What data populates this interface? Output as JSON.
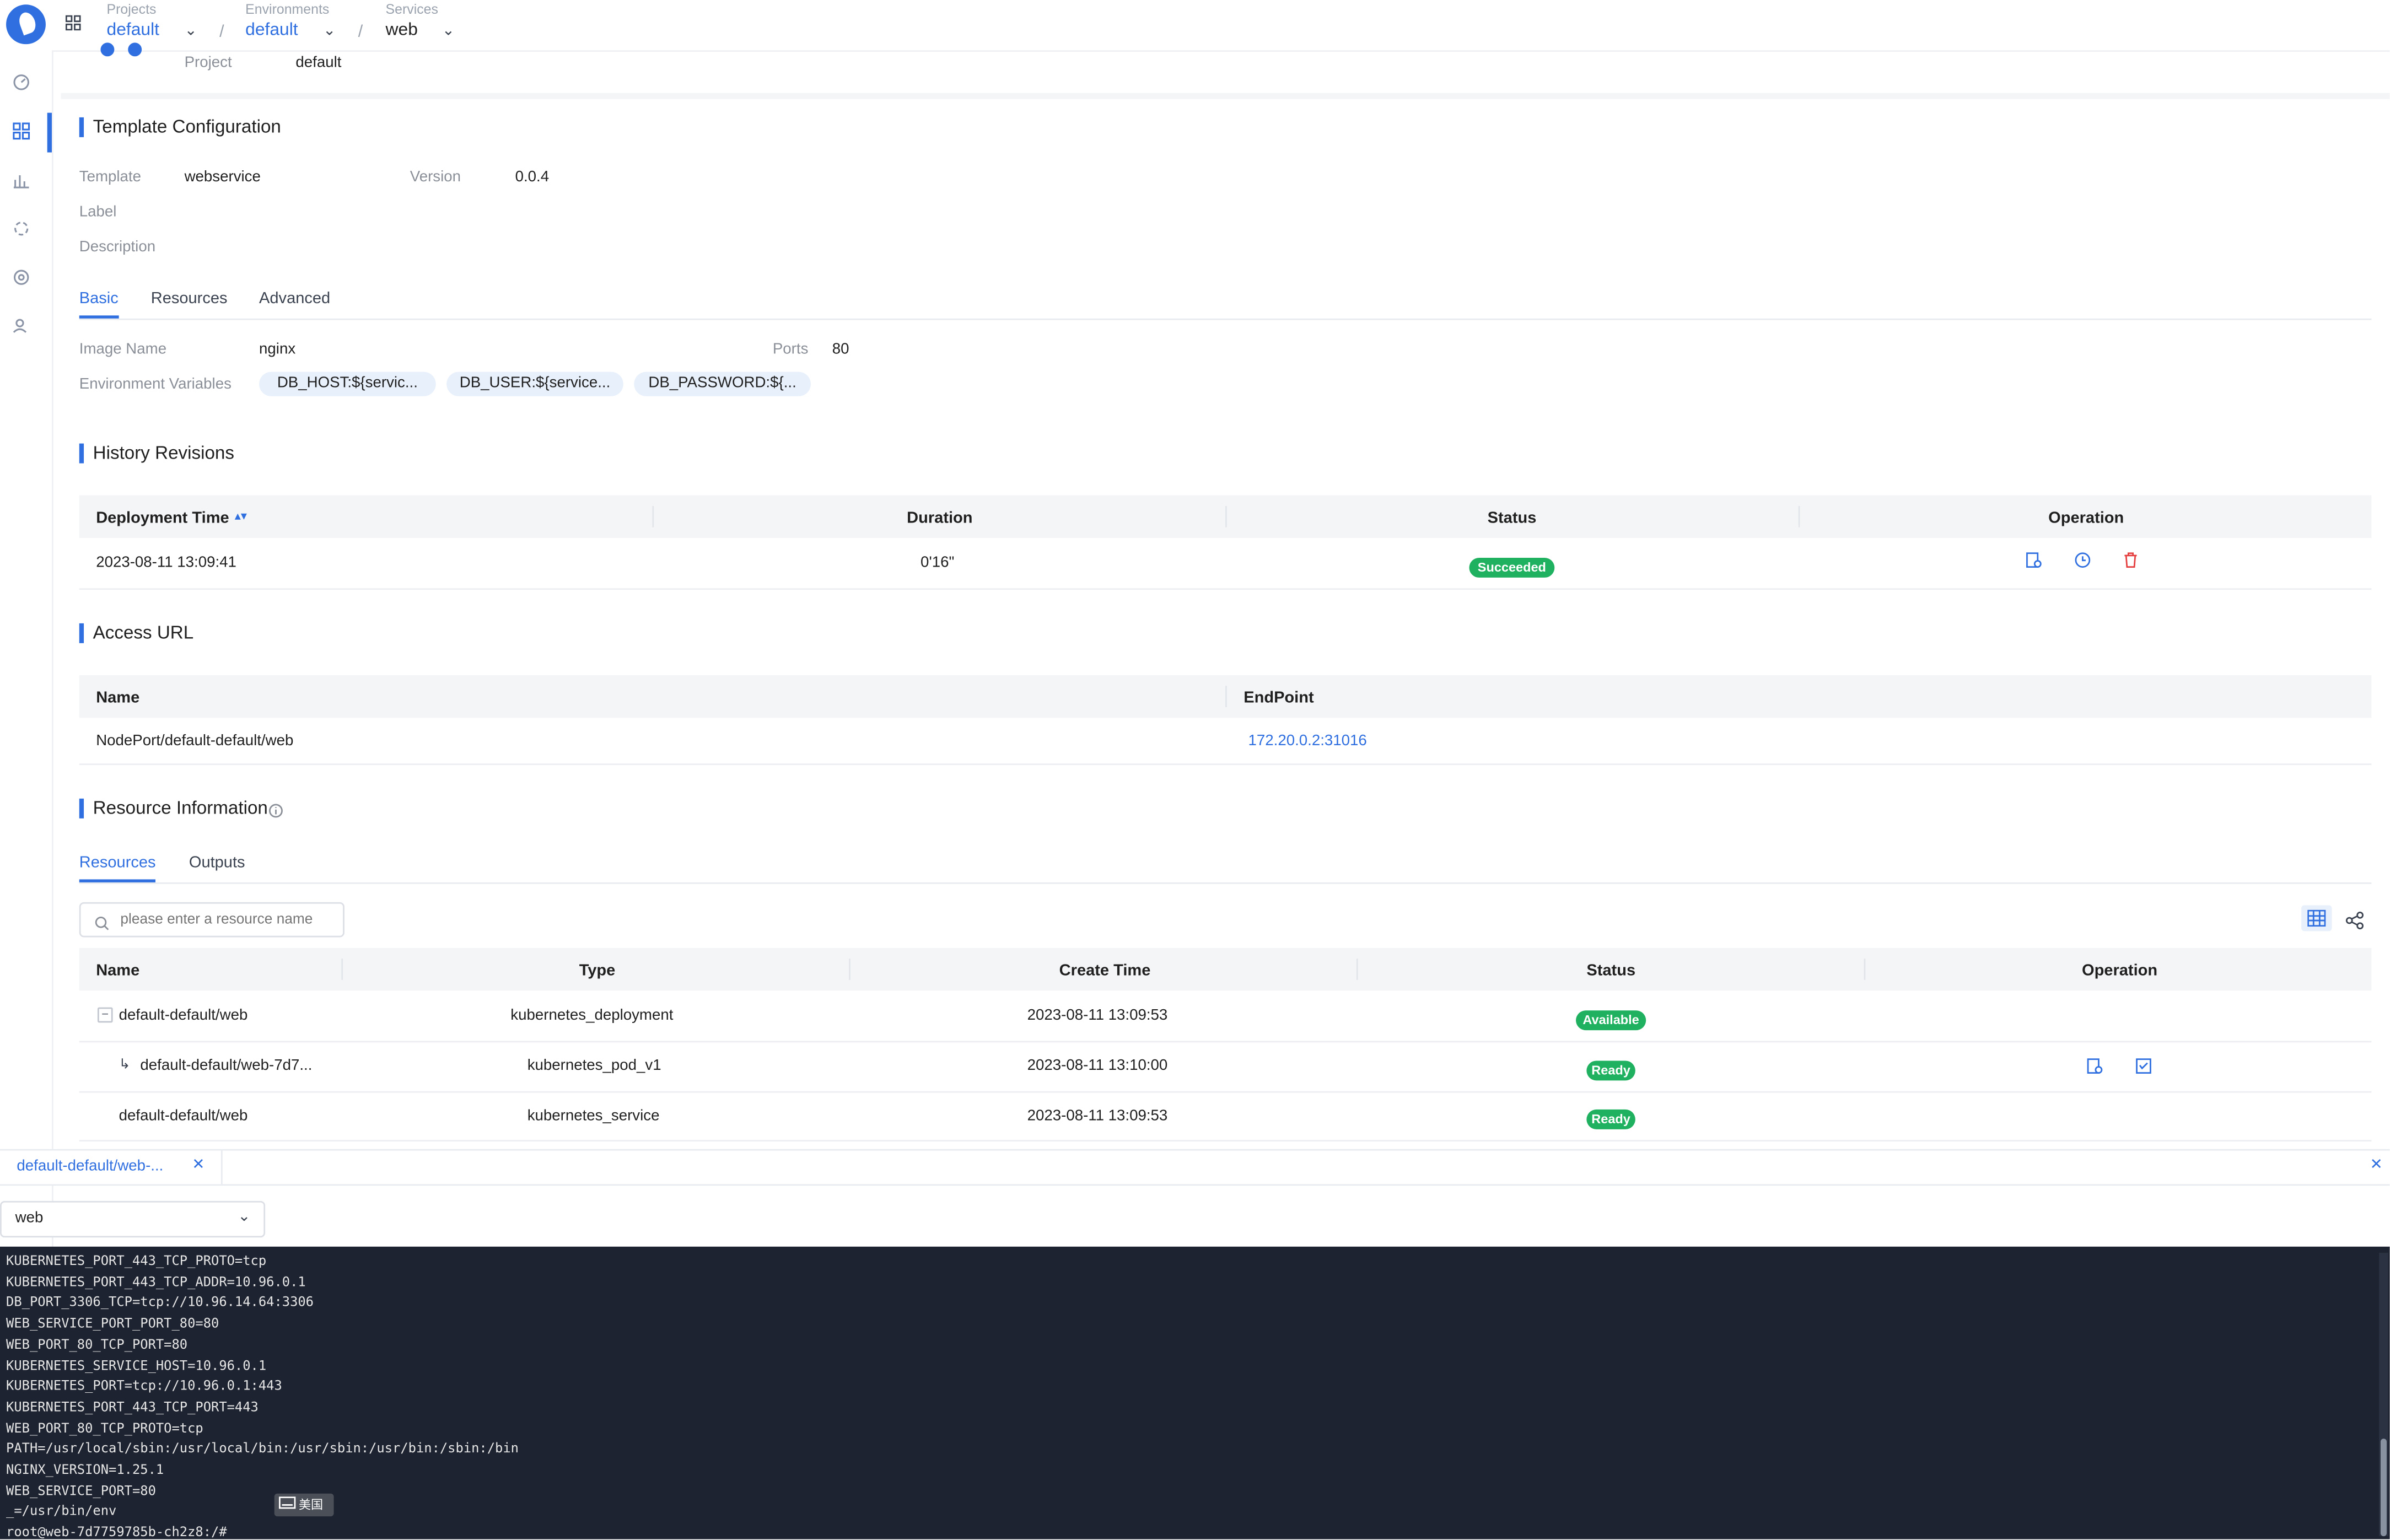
{
  "topbar": {
    "breadcrumbs": [
      {
        "caption": "Projects",
        "value": "default"
      },
      {
        "caption": "Environments",
        "value": "default"
      },
      {
        "caption": "Services",
        "value": "web"
      }
    ],
    "separator": "/"
  },
  "sidebar": {
    "items": [
      {
        "icon": "dashboard-icon"
      },
      {
        "icon": "applications-icon",
        "active": true
      },
      {
        "icon": "chart-icon"
      },
      {
        "icon": "connectors-icon"
      },
      {
        "icon": "settings-icon"
      },
      {
        "icon": "users-icon"
      }
    ]
  },
  "header": {
    "project_label": "Project",
    "project_value": "default"
  },
  "template_config": {
    "title": "Template Configuration",
    "template_label": "Template",
    "template_value": "webservice",
    "version_label": "Version",
    "version_value": "0.0.4",
    "label_label": "Label",
    "description_label": "Description",
    "tabs": [
      "Basic",
      "Resources",
      "Advanced"
    ],
    "active_tab": "Basic",
    "image_name_label": "Image Name",
    "image_name_value": "nginx",
    "ports_label": "Ports",
    "ports_value": "80",
    "env_label": "Environment Variables",
    "env_tags": [
      "DB_HOST:${servic...",
      "DB_USER:${service...",
      "DB_PASSWORD:${..."
    ]
  },
  "history": {
    "title": "History Revisions",
    "columns": [
      "Deployment Time",
      "Duration",
      "Status",
      "Operation"
    ],
    "rows": [
      {
        "time": "2023-08-11 13:09:41",
        "duration": "0'16\"",
        "status": "Succeeded"
      }
    ]
  },
  "access_url": {
    "title": "Access URL",
    "columns": [
      "Name",
      "EndPoint"
    ],
    "rows": [
      {
        "name": "NodePort/default-default/web",
        "endpoint": "172.20.0.2:31016"
      }
    ]
  },
  "resource_info": {
    "title": "Resource Information",
    "tabs": [
      "Resources",
      "Outputs"
    ],
    "active_tab": "Resources",
    "search_placeholder": "please enter a resource name",
    "columns": [
      "Name",
      "Type",
      "Create Time",
      "Status",
      "Operation"
    ],
    "rows": [
      {
        "name": "default-default/web",
        "type": "kubernetes_deployment",
        "time": "2023-08-11 13:09:53",
        "status": "Available"
      },
      {
        "name": "default-default/web-7d7...",
        "type": "kubernetes_pod_v1",
        "time": "2023-08-11 13:10:00",
        "status": "Ready"
      },
      {
        "name": "default-default/web",
        "type": "kubernetes_service",
        "time": "2023-08-11 13:09:53",
        "status": "Ready"
      }
    ]
  },
  "terminal_panel": {
    "tab_label": "default-default/web-...",
    "container_select": "web",
    "lines": [
      "KUBERNETES_PORT_443_TCP_PROTO=tcp",
      "KUBERNETES_PORT_443_TCP_ADDR=10.96.0.1",
      "DB_PORT_3306_TCP=tcp://10.96.14.64:3306",
      "WEB_SERVICE_PORT_PORT_80=80",
      "WEB_PORT_80_TCP_PORT=80",
      "KUBERNETES_SERVICE_HOST=10.96.0.1",
      "KUBERNETES_PORT=tcp://10.96.0.1:443",
      "KUBERNETES_PORT_443_TCP_PORT=443",
      "WEB_PORT_80_TCP_PROTO=tcp",
      "PATH=/usr/local/sbin:/usr/local/bin:/usr/sbin:/usr/bin:/sbin:/bin",
      "NGINX_VERSION=1.25.1",
      "WEB_SERVICE_PORT=80",
      "_=/usr/bin/env",
      "root@web-7d7759785b-ch2z8:/#"
    ],
    "ime_label": "美国"
  },
  "colors": {
    "accent": "#2f6fe0",
    "success": "#1fb160",
    "danger": "#e53e3e",
    "terminal_bg": "#1d2330"
  }
}
